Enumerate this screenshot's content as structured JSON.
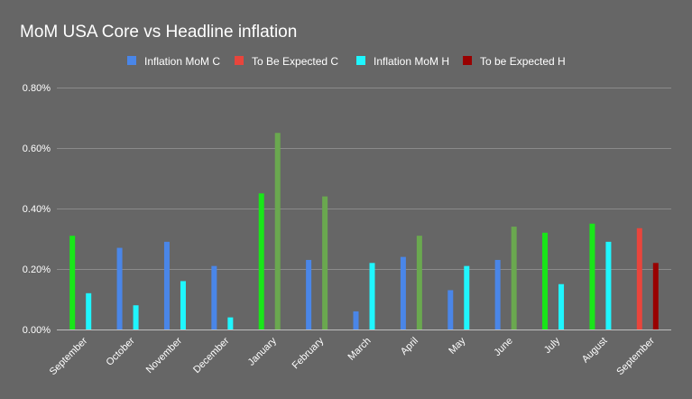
{
  "chart_data": {
    "type": "bar",
    "title": "MoM USA Core vs Headline inflation",
    "legend_position": "top",
    "grid": true,
    "ylim": [
      0,
      0.8
    ],
    "yticks": [
      "0.00%",
      "0.20%",
      "0.40%",
      "0.60%",
      "0.80%"
    ],
    "categories": [
      "September",
      "October",
      "November",
      "December",
      "January",
      "February",
      "March",
      "April",
      "May",
      "June",
      "July",
      "August",
      "September"
    ],
    "legend": [
      {
        "name": "Inflation MoM C",
        "color": "#4a86e8"
      },
      {
        "name": "To Be Expected C",
        "color": "#e8453c"
      },
      {
        "name": "Inflation MoM H",
        "color": "#1ff6ff"
      },
      {
        "name": "To be Expected H",
        "color": "#990000"
      }
    ],
    "bars": [
      [
        {
          "value": 0.31,
          "color": "#19e619"
        },
        {
          "value": 0.12,
          "color": "#1ff6ff"
        }
      ],
      [
        {
          "value": 0.27,
          "color": "#4a86e8"
        },
        {
          "value": 0.08,
          "color": "#1ff6ff"
        }
      ],
      [
        {
          "value": 0.29,
          "color": "#4a86e8"
        },
        {
          "value": 0.16,
          "color": "#1ff6ff"
        }
      ],
      [
        {
          "value": 0.21,
          "color": "#4a86e8"
        },
        {
          "value": 0.04,
          "color": "#1ff6ff"
        }
      ],
      [
        {
          "value": 0.45,
          "color": "#19e619"
        },
        {
          "value": 0.65,
          "color": "#6aa84f"
        }
      ],
      [
        {
          "value": 0.23,
          "color": "#4a86e8"
        },
        {
          "value": 0.44,
          "color": "#6aa84f"
        }
      ],
      [
        {
          "value": 0.06,
          "color": "#4a86e8"
        },
        {
          "value": 0.22,
          "color": "#1ff6ff"
        }
      ],
      [
        {
          "value": 0.24,
          "color": "#4a86e8"
        },
        {
          "value": 0.31,
          "color": "#6aa84f"
        }
      ],
      [
        {
          "value": 0.13,
          "color": "#4a86e8"
        },
        {
          "value": 0.21,
          "color": "#1ff6ff"
        }
      ],
      [
        {
          "value": 0.23,
          "color": "#4a86e8"
        },
        {
          "value": 0.34,
          "color": "#6aa84f"
        }
      ],
      [
        {
          "value": 0.32,
          "color": "#19e619"
        },
        {
          "value": 0.15,
          "color": "#1ff6ff"
        }
      ],
      [
        {
          "value": 0.35,
          "color": "#19e619"
        },
        {
          "value": 0.29,
          "color": "#1ff6ff"
        }
      ],
      [
        {
          "value": 0.335,
          "color": "#e8453c"
        },
        {
          "value": 0.22,
          "color": "#990000"
        }
      ]
    ]
  }
}
